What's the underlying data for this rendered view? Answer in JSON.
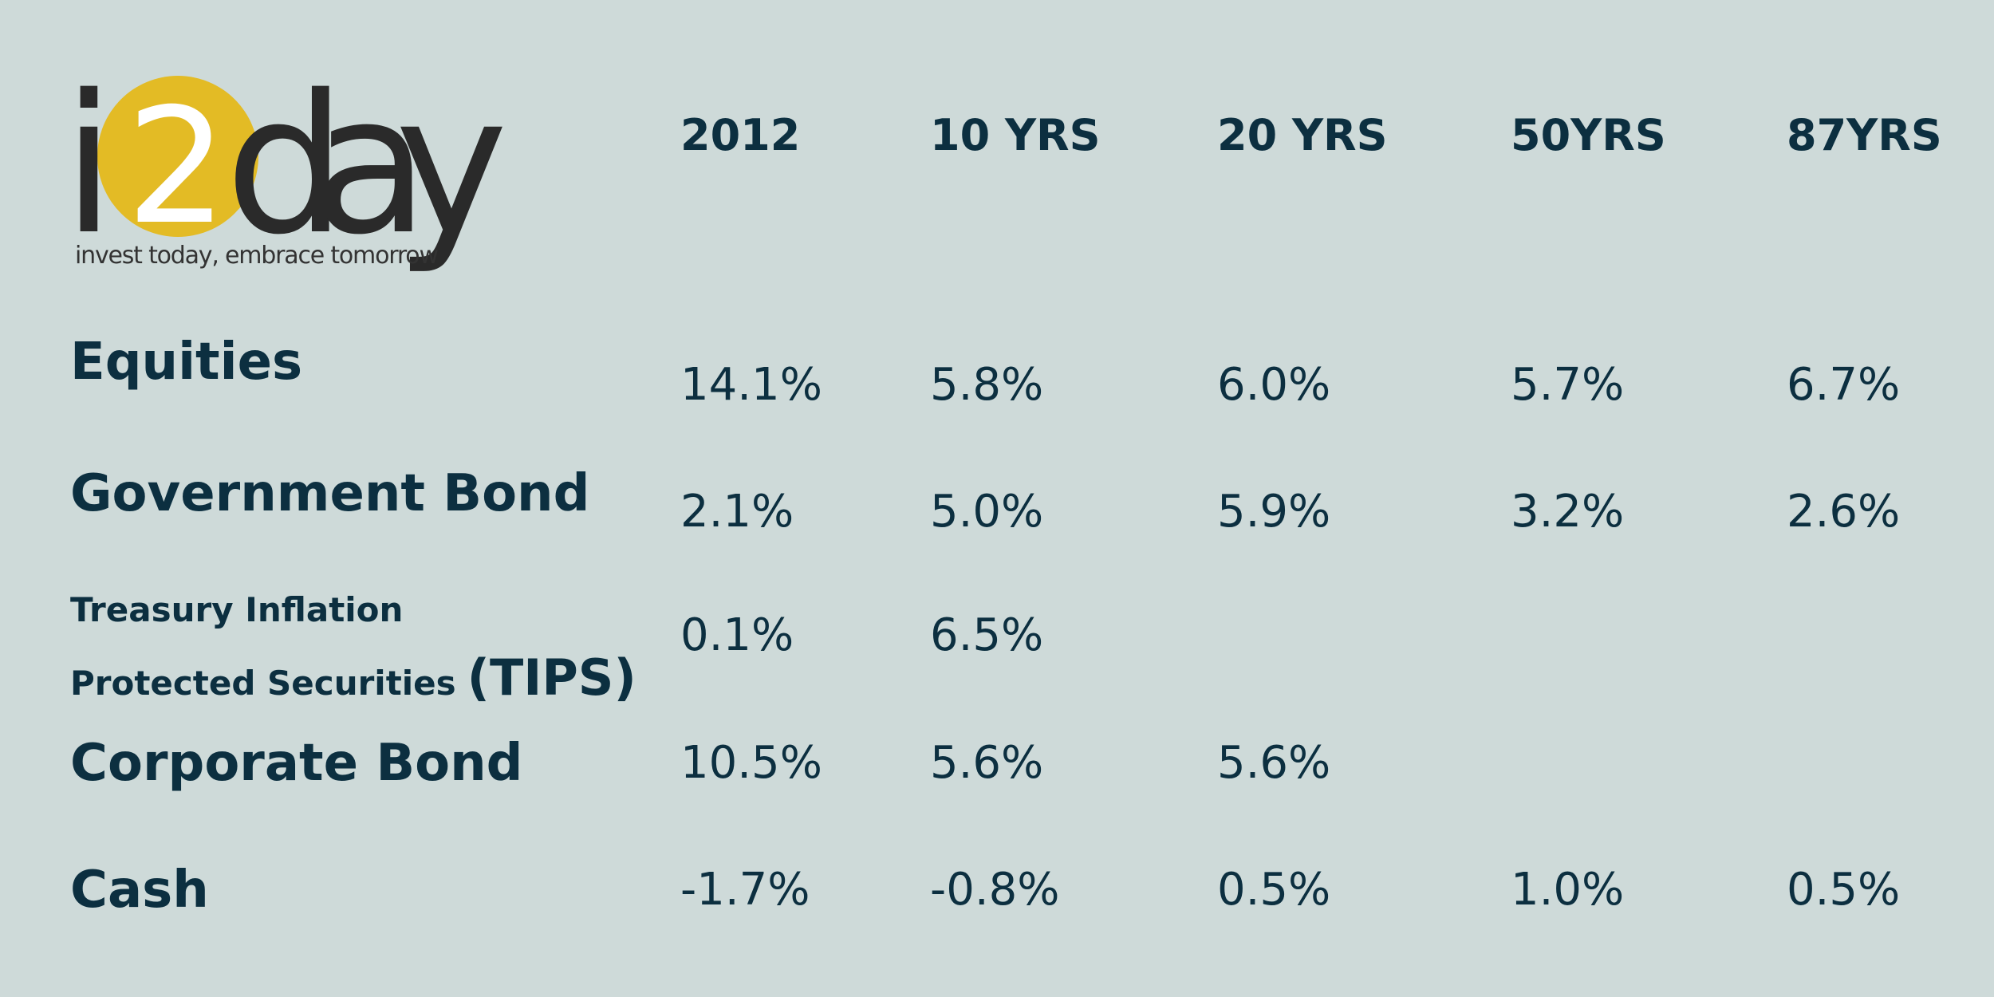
{
  "logo": {
    "prefix": "i",
    "digit": "2",
    "suffix": "day",
    "tagline": "invest today, embrace tomorrow"
  },
  "table": {
    "headers": [
      "2012",
      "10 YRS",
      "20 YRS",
      "50YRS",
      "87YRS"
    ],
    "rows": [
      {
        "label": "Equities",
        "cells": [
          "14.1%",
          "5.8%",
          "6.0%",
          "5.7%",
          "6.7%"
        ]
      },
      {
        "label": "Government Bond",
        "cells": [
          "2.1%",
          "5.0%",
          "5.9%",
          "3.2%",
          "2.6%"
        ]
      },
      {
        "label_lines": [
          "Treasury Inflation",
          "Protected Securities",
          "(TIPS)"
        ],
        "cells": [
          "0.1%",
          "6.5%"
        ]
      },
      {
        "label": "Corporate Bond",
        "cells": [
          "10.5%",
          "5.6%",
          "5.6%"
        ]
      },
      {
        "label": "Cash",
        "cells": [
          "-1.7%",
          "-0.8%",
          "0.5%",
          "1.0%",
          "0.5%"
        ]
      }
    ]
  }
}
